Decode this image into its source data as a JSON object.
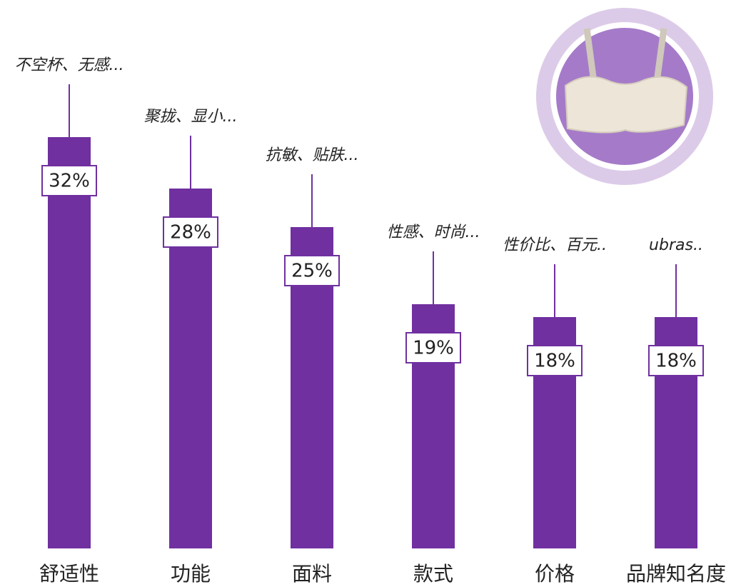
{
  "chart_data": {
    "type": "bar",
    "categories": [
      "舒适性",
      "功能",
      "面料",
      "款式",
      "价格",
      "品牌知名度"
    ],
    "values": [
      32,
      28,
      25,
      19,
      18,
      18
    ],
    "value_labels": [
      "32%",
      "28%",
      "25%",
      "19%",
      "18%",
      "18%"
    ],
    "annotations": [
      "不空杯、无感...",
      "聚拢、显小...",
      "抗敏、贴肤...",
      "性感、时尚...",
      "性价比、百元..",
      "ubras.."
    ],
    "color": "#7030a0"
  }
}
